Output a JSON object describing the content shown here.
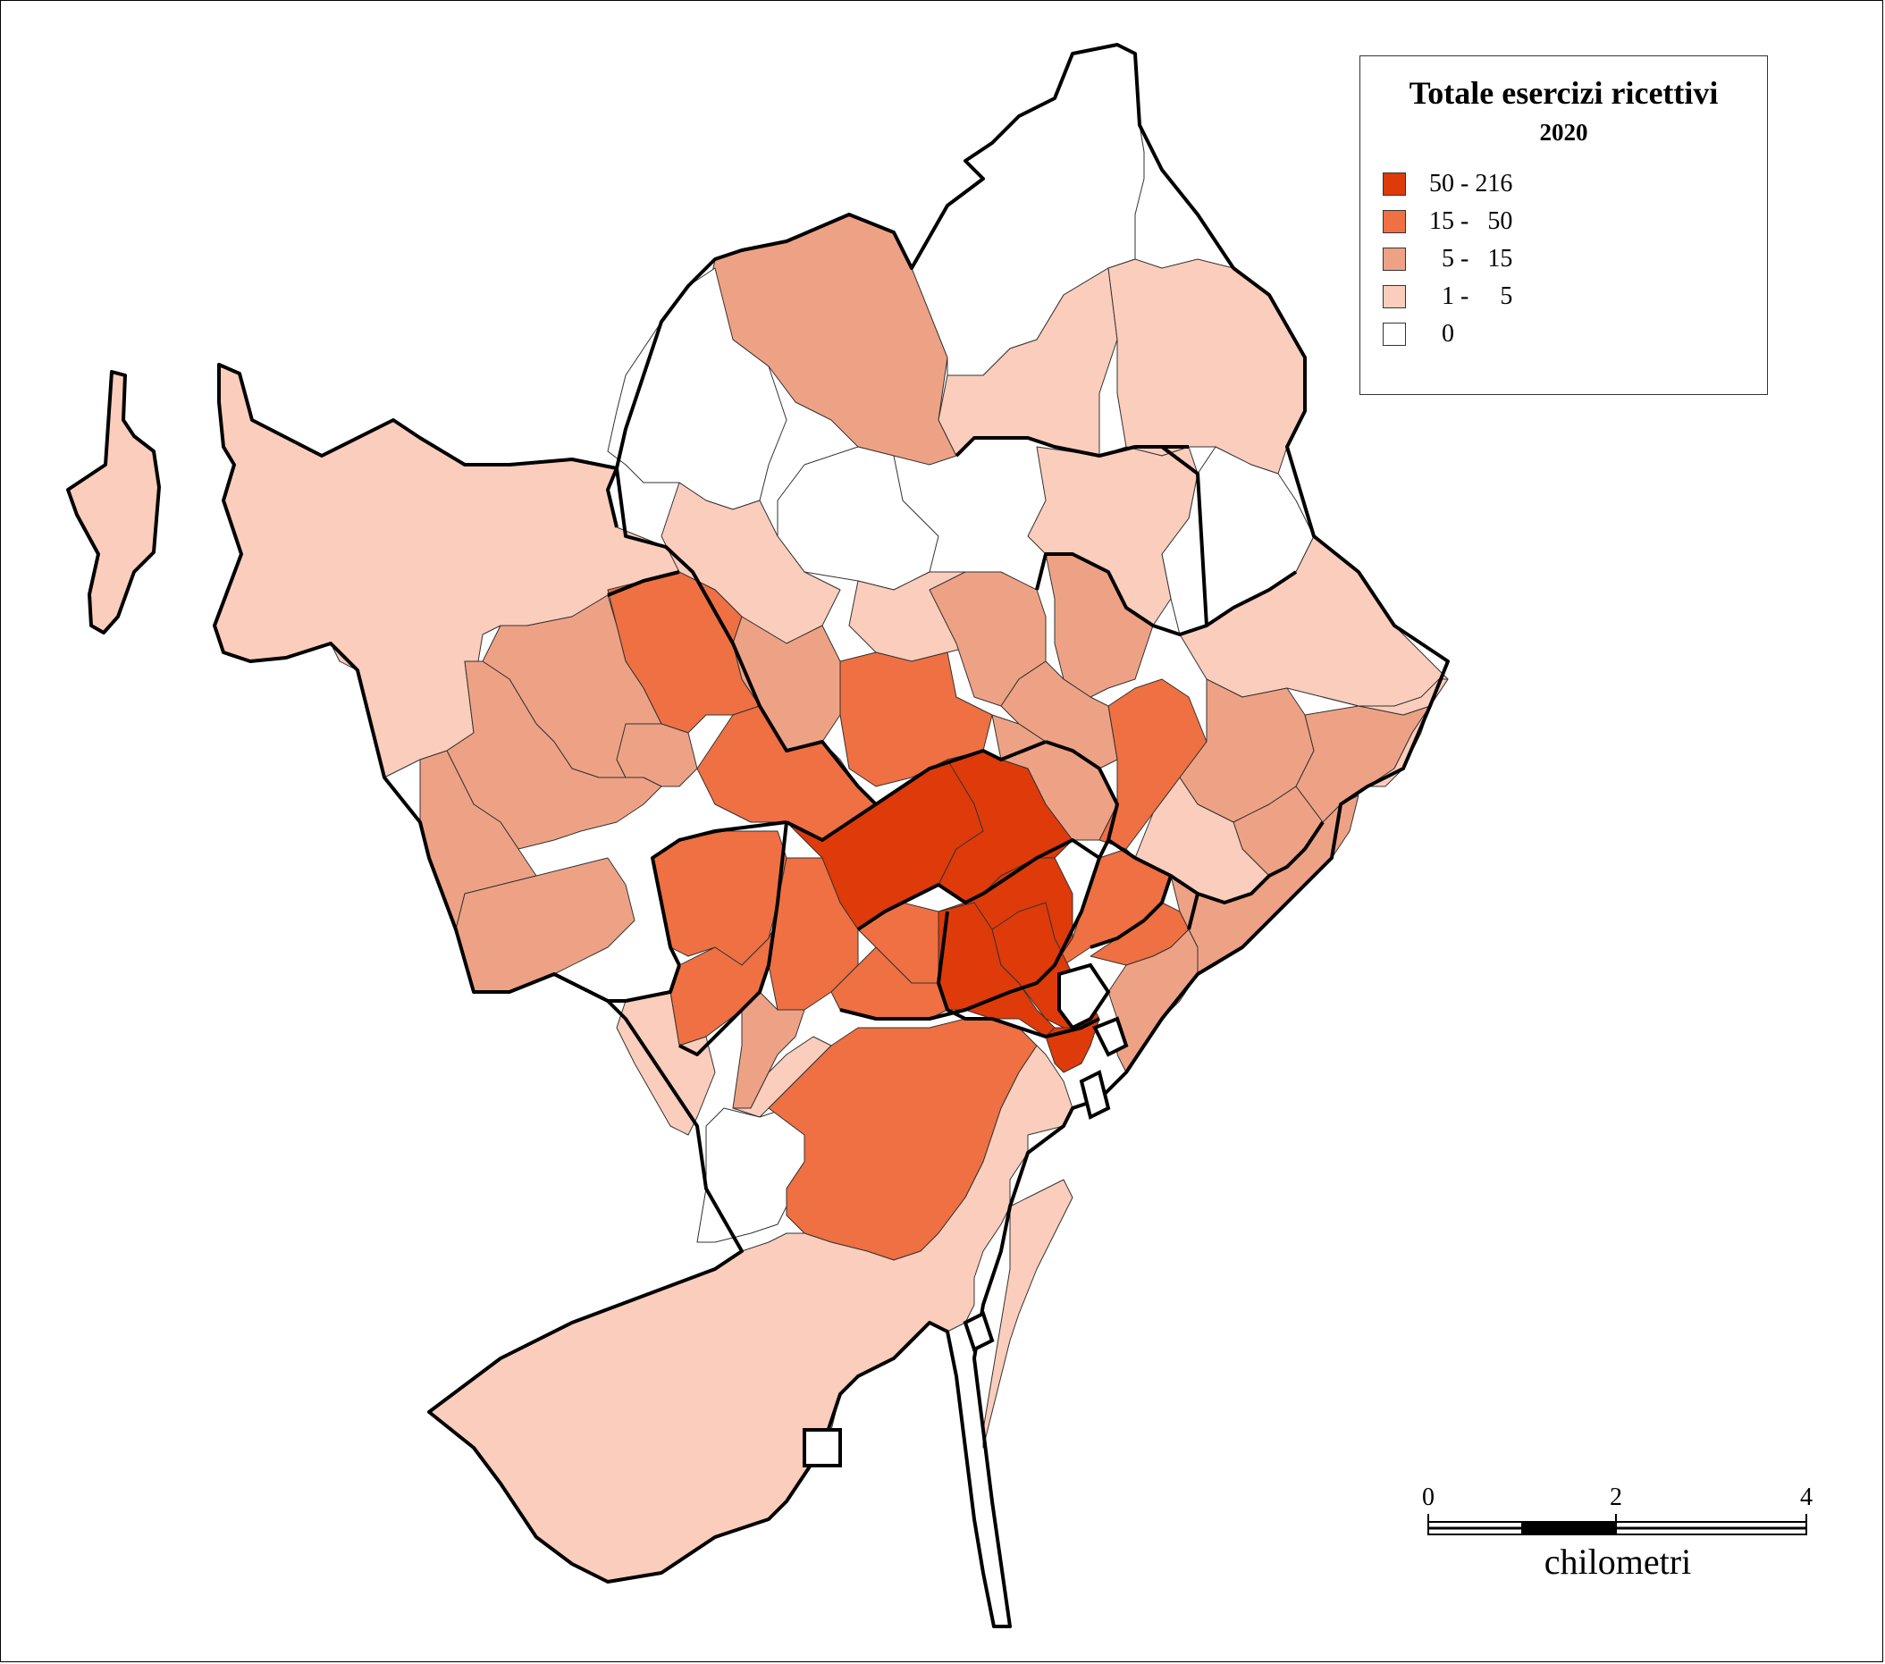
{
  "legend": {
    "title": "Totale esercizi ricettivi",
    "year": "2020",
    "classes": [
      {
        "label": "50 - 216",
        "color": "#de3a0a",
        "min": 50,
        "max": 216
      },
      {
        "label": "15 -   50",
        "color": "#ef7042",
        "min": 15,
        "max": 50
      },
      {
        "label": "  5 -   15",
        "color": "#eea285",
        "min": 5,
        "max": 15
      },
      {
        "label": "  1 -     5",
        "color": "#fbcdbc",
        "min": 1,
        "max": 5
      },
      {
        "label": "  0",
        "color": "#ffffff",
        "min": 0,
        "max": 0
      }
    ]
  },
  "scale_bar": {
    "ticks": [
      "0",
      "2",
      "4"
    ],
    "unit": "chilometri"
  },
  "colors": {
    "boundary": "#000000",
    "background": "#ffffff"
  }
}
